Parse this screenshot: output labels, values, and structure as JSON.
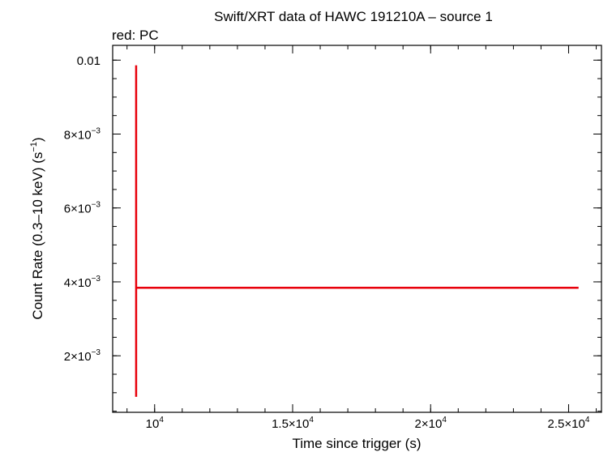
{
  "chart_data": {
    "type": "scatter",
    "title": "Swift/XRT data of HAWC 191210A – source 1",
    "subtitle": "red: PC",
    "xlabel": "Time since trigger (s)",
    "ylabel_prefix": "Count Rate (0.3–10 keV) (s",
    "ylabel_exp": "−1",
    "ylabel_suffix": ")",
    "xlim": [
      8480,
      26190
    ],
    "ylim": [
      0.00047,
      0.0104
    ],
    "x_ticks": [
      {
        "value": 10000,
        "mant": "",
        "exp": "4"
      },
      {
        "value": 15000,
        "mant": "1.5×",
        "exp": "4"
      },
      {
        "value": 20000,
        "mant": "2×",
        "exp": "4"
      },
      {
        "value": 25000,
        "mant": "2.5×",
        "exp": "4"
      }
    ],
    "y_ticks": [
      {
        "value": 0.002,
        "mant": "2×",
        "exp": "−3"
      },
      {
        "value": 0.004,
        "mant": "4×",
        "exp": "−3"
      },
      {
        "value": 0.006,
        "mant": "6×",
        "exp": "−3"
      },
      {
        "value": 0.008,
        "mant": "8×",
        "exp": "−3"
      },
      {
        "value": 0.01,
        "text": "0.01"
      }
    ],
    "x_minor_step": 1000,
    "y_minor_step": 0.0005,
    "series": [
      {
        "color": "#e8000b",
        "points": [
          {
            "x": 9330,
            "xerr_low": 9330,
            "xerr_high": 25360,
            "y": 0.00384,
            "yerr_low": 0.00089,
            "yerr_high": 0.00986
          }
        ]
      }
    ]
  }
}
